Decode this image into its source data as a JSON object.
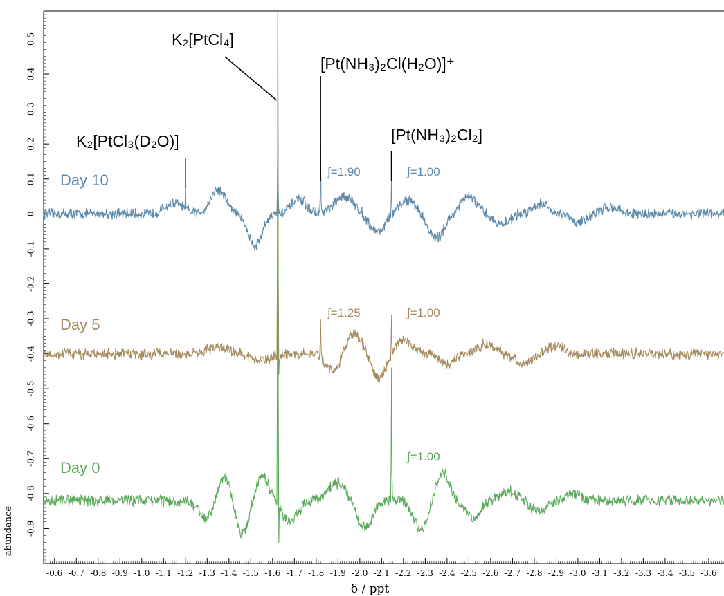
{
  "chart_data": {
    "type": "line",
    "title": "",
    "xlabel": "δ / ppt",
    "ylabel": "abundance",
    "xlim": [
      -0.55,
      -3.67
    ],
    "ylim": [
      -1.0,
      0.58
    ],
    "x_ticks": [
      -0.6,
      -0.7,
      -0.8,
      -0.9,
      -1.0,
      -1.1,
      -1.2,
      -1.3,
      -1.4,
      -1.5,
      -1.6,
      -1.7,
      -1.8,
      -1.9,
      -2.0,
      -2.1,
      -2.2,
      -2.3,
      -2.4,
      -2.5,
      -2.6,
      -2.7,
      -2.8,
      -2.9,
      -3.0,
      -3.1,
      -3.2,
      -3.3,
      -3.4,
      -3.5,
      -3.6
    ],
    "x_tick_labels": [
      "-0.6",
      "-0.7",
      "-0.8",
      "-0.9",
      "-1.0",
      "-1.1",
      "-1.2",
      "-1.3",
      "-1.4",
      "-1.5",
      "-1.6",
      "-1.7",
      "-1.8",
      "-1.9",
      "-2.0",
      "-2.1",
      "-2.2",
      "-2.3",
      "-2.4",
      "-2.5",
      "-2.6",
      "-2.7",
      "-2.8",
      "-2.9",
      "-3.0",
      "-3.1",
      "-3.2",
      "-3.3",
      "-3.4",
      "-3.5",
      "-3.6"
    ],
    "y_ticks": [
      0.5,
      0.4,
      0.3,
      0.2,
      0.1,
      0,
      -0.1,
      -0.2,
      -0.3,
      -0.4,
      -0.5,
      -0.6,
      -0.7,
      -0.8,
      -0.9
    ],
    "y_tick_labels": [
      "0.5",
      "0.4",
      "0.3",
      "0.2",
      "0.1",
      "0",
      "-0.1",
      "-0.2",
      "-0.3",
      "-0.4",
      "-0.5",
      "-0.6",
      "-0.7",
      "-0.8",
      "-0.9"
    ],
    "grid": false,
    "series": [
      {
        "name": "Day 10",
        "color": "#5b8aaa",
        "baseline": 0.0,
        "noise": 0.012,
        "waves": [
          {
            "center": -1.15,
            "amp": 0.03,
            "width": 0.06
          },
          {
            "center": -1.35,
            "amp": 0.07,
            "width": 0.05
          },
          {
            "center": -1.52,
            "amp": -0.09,
            "width": 0.045
          },
          {
            "center": -1.72,
            "amp": 0.04,
            "width": 0.05
          },
          {
            "center": -1.93,
            "amp": 0.05,
            "width": 0.06
          },
          {
            "center": -2.08,
            "amp": -0.05,
            "width": 0.05
          },
          {
            "center": -2.22,
            "amp": 0.04,
            "width": 0.05
          },
          {
            "center": -2.35,
            "amp": -0.07,
            "width": 0.05
          },
          {
            "center": -2.5,
            "amp": 0.05,
            "width": 0.05
          },
          {
            "center": -2.65,
            "amp": -0.03,
            "width": 0.05
          },
          {
            "center": -2.83,
            "amp": 0.03,
            "width": 0.05
          },
          {
            "center": -3.0,
            "amp": -0.025,
            "width": 0.05
          },
          {
            "center": -3.15,
            "amp": 0.02,
            "width": 0.05
          }
        ],
        "peaks": [
          {
            "x": -1.2,
            "height": 0.08
          },
          {
            "x": -1.625,
            "height": 0.27
          },
          {
            "x": -1.82,
            "height": 0.19
          },
          {
            "x": -2.145,
            "height": 0.11
          }
        ]
      },
      {
        "name": "Day 5",
        "color": "#a48a5c",
        "baseline": -0.4,
        "noise": 0.012,
        "waves": [
          {
            "center": -1.35,
            "amp": 0.02,
            "width": 0.06
          },
          {
            "center": -1.55,
            "amp": -0.02,
            "width": 0.06
          },
          {
            "center": -1.88,
            "amp": -0.05,
            "width": 0.05
          },
          {
            "center": -1.97,
            "amp": 0.06,
            "width": 0.05
          },
          {
            "center": -2.09,
            "amp": -0.07,
            "width": 0.045
          },
          {
            "center": -2.2,
            "amp": 0.04,
            "width": 0.05
          },
          {
            "center": -2.4,
            "amp": -0.03,
            "width": 0.05
          },
          {
            "center": -2.58,
            "amp": 0.03,
            "width": 0.05
          },
          {
            "center": -2.75,
            "amp": -0.03,
            "width": 0.05
          },
          {
            "center": -2.9,
            "amp": 0.025,
            "width": 0.05
          }
        ],
        "peaks": [
          {
            "x": -1.625,
            "height": 0.98
          },
          {
            "x": -1.82,
            "height": 0.1
          },
          {
            "x": -2.145,
            "height": 0.11
          }
        ]
      },
      {
        "name": "Day 0",
        "color": "#5aaa5a",
        "baseline": -0.82,
        "noise": 0.013,
        "waves": [
          {
            "center": -1.3,
            "amp": -0.05,
            "width": 0.05
          },
          {
            "center": -1.38,
            "amp": 0.08,
            "width": 0.045
          },
          {
            "center": -1.46,
            "amp": -0.1,
            "width": 0.045
          },
          {
            "center": -1.55,
            "amp": 0.07,
            "width": 0.045
          },
          {
            "center": -1.68,
            "amp": -0.06,
            "width": 0.05
          },
          {
            "center": -1.9,
            "amp": 0.05,
            "width": 0.06
          },
          {
            "center": -2.02,
            "amp": -0.08,
            "width": 0.05
          },
          {
            "center": -2.28,
            "amp": -0.08,
            "width": 0.05
          },
          {
            "center": -2.38,
            "amp": 0.08,
            "width": 0.045
          },
          {
            "center": -2.52,
            "amp": -0.05,
            "width": 0.05
          },
          {
            "center": -2.68,
            "amp": 0.03,
            "width": 0.05
          },
          {
            "center": -2.82,
            "amp": -0.03,
            "width": 0.05
          },
          {
            "center": -2.98,
            "amp": 0.02,
            "width": 0.05
          }
        ],
        "peaks": [
          {
            "x": -1.625,
            "height": 1.4
          },
          {
            "x": -2.145,
            "height": 0.38
          }
        ]
      }
    ],
    "annotations": [
      {
        "type": "compound",
        "label": "K₂[PtCl₃(D₂O)]",
        "points_to": -1.2
      },
      {
        "type": "compound",
        "label": "K₂[PtCl₄]",
        "points_to": -1.625
      },
      {
        "type": "compound",
        "label": "[Pt(NH₃)₂Cl(H₂O)]⁺",
        "points_to": -1.82
      },
      {
        "type": "compound",
        "label": "[Pt(NH₃)₂Cl₂]",
        "points_to": -2.145
      },
      {
        "type": "integral",
        "series": "Day 10",
        "label": "∫=1.90"
      },
      {
        "type": "integral",
        "series": "Day 10",
        "label": "∫=1.00"
      },
      {
        "type": "integral",
        "series": "Day 5",
        "label": "∫=1.25"
      },
      {
        "type": "integral",
        "series": "Day 5",
        "label": "∫=1.00"
      },
      {
        "type": "integral",
        "series": "Day 0",
        "label": "∫=1.00"
      }
    ]
  }
}
